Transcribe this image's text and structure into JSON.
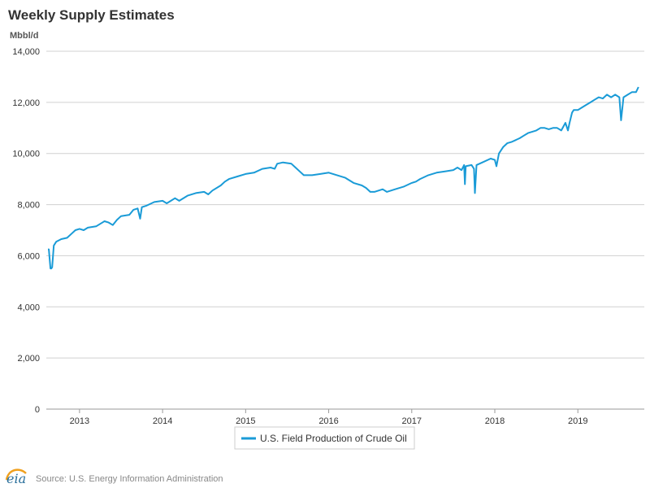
{
  "chart_data": {
    "type": "line",
    "title": "Weekly Supply Estimates",
    "unit": "Mbbl/d",
    "ylim": [
      0,
      14000
    ],
    "y_ticks": [
      0,
      2000,
      4000,
      6000,
      8000,
      10000,
      12000,
      14000
    ],
    "y_tick_labels": [
      "0",
      "2,000",
      "4,000",
      "6,000",
      "8,000",
      "10,000",
      "12,000",
      "14,000"
    ],
    "xlim": [
      2012.6,
      2019.8
    ],
    "x_ticks": [
      2013,
      2014,
      2015,
      2016,
      2017,
      2018,
      2019
    ],
    "x_tick_labels": [
      "2013",
      "2014",
      "2015",
      "2016",
      "2017",
      "2018",
      "2019"
    ],
    "grid": true,
    "legend_position": "bottom-center",
    "series": [
      {
        "name": "U.S. Field Production of Crude Oil",
        "color": "#1a9bd7",
        "points": [
          [
            2012.62,
            6250
          ],
          [
            2012.63,
            6250
          ],
          [
            2012.65,
            5500
          ],
          [
            2012.66,
            5500
          ],
          [
            2012.67,
            5550
          ],
          [
            2012.69,
            6400
          ],
          [
            2012.72,
            6550
          ],
          [
            2012.78,
            6650
          ],
          [
            2012.85,
            6700
          ],
          [
            2012.9,
            6850
          ],
          [
            2012.95,
            7000
          ],
          [
            2013.0,
            7050
          ],
          [
            2013.05,
            7000
          ],
          [
            2013.1,
            7100
          ],
          [
            2013.2,
            7150
          ],
          [
            2013.3,
            7350
          ],
          [
            2013.35,
            7300
          ],
          [
            2013.4,
            7200
          ],
          [
            2013.45,
            7400
          ],
          [
            2013.5,
            7550
          ],
          [
            2013.6,
            7600
          ],
          [
            2013.65,
            7800
          ],
          [
            2013.7,
            7850
          ],
          [
            2013.73,
            7450
          ],
          [
            2013.75,
            7900
          ],
          [
            2013.8,
            7950
          ],
          [
            2013.9,
            8100
          ],
          [
            2014.0,
            8150
          ],
          [
            2014.05,
            8050
          ],
          [
            2014.1,
            8150
          ],
          [
            2014.15,
            8250
          ],
          [
            2014.2,
            8150
          ],
          [
            2014.3,
            8350
          ],
          [
            2014.4,
            8450
          ],
          [
            2014.5,
            8500
          ],
          [
            2014.55,
            8400
          ],
          [
            2014.6,
            8550
          ],
          [
            2014.7,
            8750
          ],
          [
            2014.75,
            8900
          ],
          [
            2014.8,
            9000
          ],
          [
            2014.9,
            9100
          ],
          [
            2015.0,
            9200
          ],
          [
            2015.1,
            9250
          ],
          [
            2015.2,
            9400
          ],
          [
            2015.3,
            9450
          ],
          [
            2015.35,
            9400
          ],
          [
            2015.38,
            9600
          ],
          [
            2015.45,
            9650
          ],
          [
            2015.55,
            9600
          ],
          [
            2015.6,
            9450
          ],
          [
            2015.65,
            9300
          ],
          [
            2015.7,
            9150
          ],
          [
            2015.8,
            9150
          ],
          [
            2015.9,
            9200
          ],
          [
            2016.0,
            9250
          ],
          [
            2016.1,
            9150
          ],
          [
            2016.2,
            9050
          ],
          [
            2016.3,
            8850
          ],
          [
            2016.4,
            8750
          ],
          [
            2016.45,
            8650
          ],
          [
            2016.5,
            8500
          ],
          [
            2016.55,
            8500
          ],
          [
            2016.6,
            8550
          ],
          [
            2016.65,
            8600
          ],
          [
            2016.7,
            8500
          ],
          [
            2016.8,
            8600
          ],
          [
            2016.9,
            8700
          ],
          [
            2017.0,
            8850
          ],
          [
            2017.05,
            8900
          ],
          [
            2017.1,
            9000
          ],
          [
            2017.2,
            9150
          ],
          [
            2017.3,
            9250
          ],
          [
            2017.4,
            9300
          ],
          [
            2017.5,
            9350
          ],
          [
            2017.55,
            9450
          ],
          [
            2017.6,
            9350
          ],
          [
            2017.63,
            9550
          ],
          [
            2017.64,
            8800
          ],
          [
            2017.65,
            9500
          ],
          [
            2017.72,
            9550
          ],
          [
            2017.75,
            9400
          ],
          [
            2017.76,
            8450
          ],
          [
            2017.78,
            9550
          ],
          [
            2017.85,
            9650
          ],
          [
            2017.95,
            9800
          ],
          [
            2018.0,
            9750
          ],
          [
            2018.02,
            9500
          ],
          [
            2018.05,
            10000
          ],
          [
            2018.1,
            10250
          ],
          [
            2018.15,
            10400
          ],
          [
            2018.2,
            10450
          ],
          [
            2018.3,
            10600
          ],
          [
            2018.35,
            10700
          ],
          [
            2018.4,
            10800
          ],
          [
            2018.5,
            10900
          ],
          [
            2018.55,
            11000
          ],
          [
            2018.6,
            11000
          ],
          [
            2018.65,
            10950
          ],
          [
            2018.7,
            11000
          ],
          [
            2018.75,
            11000
          ],
          [
            2018.8,
            10900
          ],
          [
            2018.85,
            11200
          ],
          [
            2018.88,
            10900
          ],
          [
            2018.9,
            11200
          ],
          [
            2018.93,
            11600
          ],
          [
            2018.95,
            11700
          ],
          [
            2019.0,
            11700
          ],
          [
            2019.05,
            11800
          ],
          [
            2019.1,
            11900
          ],
          [
            2019.15,
            12000
          ],
          [
            2019.2,
            12100
          ],
          [
            2019.25,
            12200
          ],
          [
            2019.3,
            12150
          ],
          [
            2019.35,
            12300
          ],
          [
            2019.4,
            12200
          ],
          [
            2019.45,
            12300
          ],
          [
            2019.5,
            12200
          ],
          [
            2019.52,
            11300
          ],
          [
            2019.55,
            12200
          ],
          [
            2019.6,
            12300
          ],
          [
            2019.65,
            12400
          ],
          [
            2019.7,
            12400
          ],
          [
            2019.73,
            12600
          ]
        ]
      }
    ]
  },
  "source": "Source: U.S. Energy Information Administration",
  "logo": "eia"
}
